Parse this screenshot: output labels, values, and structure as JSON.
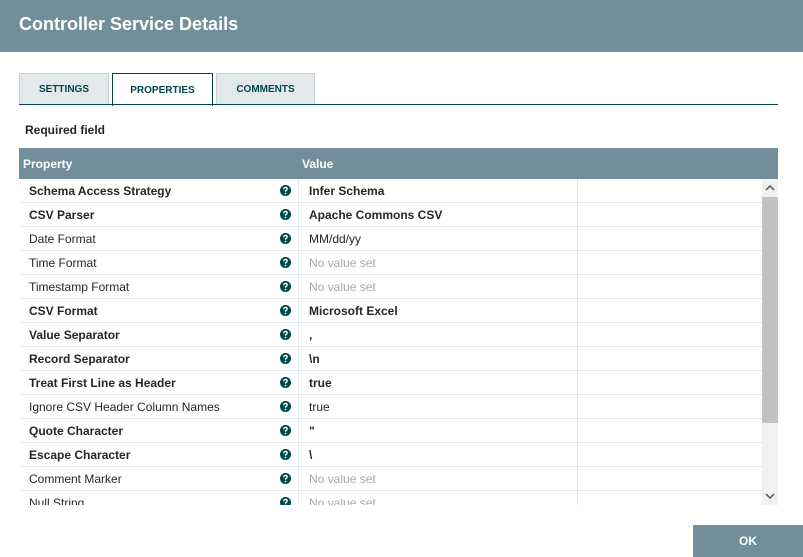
{
  "header": {
    "title": "Controller Service Details"
  },
  "tabs": [
    {
      "label": "SETTINGS",
      "active": false
    },
    {
      "label": "PROPERTIES",
      "active": true
    },
    {
      "label": "COMMENTS",
      "active": false
    }
  ],
  "required_note": "Required field",
  "table": {
    "columns": [
      "Property",
      "Value"
    ],
    "empty_text": "No value set",
    "rows": [
      {
        "property": "Schema Access Strategy",
        "value": "Infer Schema",
        "required": true
      },
      {
        "property": "CSV Parser",
        "value": "Apache Commons CSV",
        "required": true
      },
      {
        "property": "Date Format",
        "value": "MM/dd/yy",
        "required": false
      },
      {
        "property": "Time Format",
        "value": null,
        "required": false
      },
      {
        "property": "Timestamp Format",
        "value": null,
        "required": false
      },
      {
        "property": "CSV Format",
        "value": "Microsoft Excel",
        "required": true
      },
      {
        "property": "Value Separator",
        "value": ",",
        "required": true
      },
      {
        "property": "Record Separator",
        "value": "\\n",
        "required": true
      },
      {
        "property": "Treat First Line as Header",
        "value": "true",
        "required": true
      },
      {
        "property": "Ignore CSV Header Column Names",
        "value": "true",
        "required": false
      },
      {
        "property": "Quote Character",
        "value": "\"",
        "required": true
      },
      {
        "property": "Escape Character",
        "value": "\\",
        "required": true
      },
      {
        "property": "Comment Marker",
        "value": null,
        "required": false
      },
      {
        "property": "Null String",
        "value": null,
        "required": false
      }
    ]
  },
  "ok_button": "OK"
}
